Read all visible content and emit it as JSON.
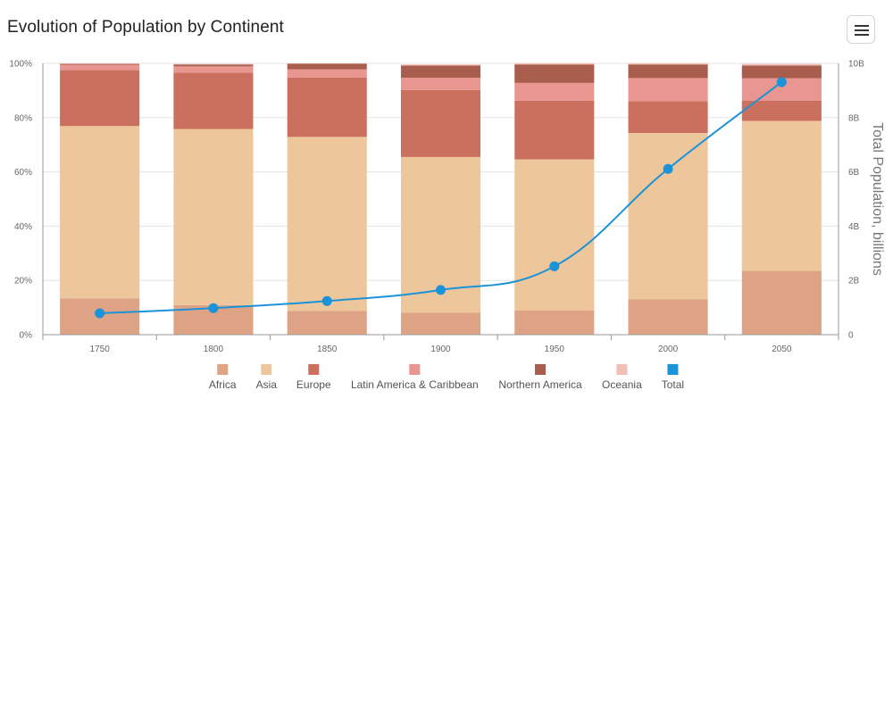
{
  "header": {
    "title": "Evolution of Population by Continent",
    "menu_icon": "hamburger-menu-icon"
  },
  "chart_data": {
    "type": "bar",
    "stacked": "percent",
    "title": "Evolution of Population by Continent",
    "categories": [
      "1750",
      "1800",
      "1850",
      "1900",
      "1950",
      "2000",
      "2050"
    ],
    "y_left": {
      "ticks": [
        "0%",
        "20%",
        "40%",
        "60%",
        "80%",
        "100%"
      ],
      "range": [
        0,
        100
      ],
      "unit": "%"
    },
    "y_right": {
      "label": "Total Population, billions",
      "ticks": [
        "0",
        "2B",
        "4B",
        "6B",
        "8B",
        "10B"
      ],
      "range": [
        0,
        10
      ]
    },
    "series": [
      {
        "name": "Africa",
        "color": "#dea385",
        "values": [
          13.4,
          10.9,
          8.8,
          8.1,
          9.0,
          13.1,
          23.5
        ]
      },
      {
        "name": "Asia",
        "color": "#eec69b",
        "values": [
          63.5,
          64.9,
          64.1,
          57.4,
          55.6,
          61.2,
          55.3
        ]
      },
      {
        "name": "Europe",
        "color": "#cb705e",
        "values": [
          20.6,
          20.8,
          21.9,
          24.7,
          21.6,
          11.8,
          7.5
        ]
      },
      {
        "name": "Latin America & Caribbean",
        "color": "#e99590",
        "values": [
          2.0,
          2.3,
          3.0,
          4.5,
          6.6,
          8.5,
          8.2
        ]
      },
      {
        "name": "Northern America",
        "color": "#a85d4d",
        "values": [
          0.3,
          0.7,
          2.1,
          4.5,
          6.8,
          5.0,
          4.7
        ]
      },
      {
        "name": "Oceania",
        "color": "#f3beb5",
        "values": [
          0.2,
          0.2,
          0.1,
          0.4,
          0.5,
          0.5,
          0.6
        ]
      }
    ],
    "line_series": {
      "name": "Total",
      "color": "#1b93d9",
      "axis": "right",
      "values": [
        0.79,
        0.98,
        1.24,
        1.65,
        2.52,
        6.11,
        9.31
      ]
    },
    "grid": true,
    "legend_position": "bottom-center"
  }
}
